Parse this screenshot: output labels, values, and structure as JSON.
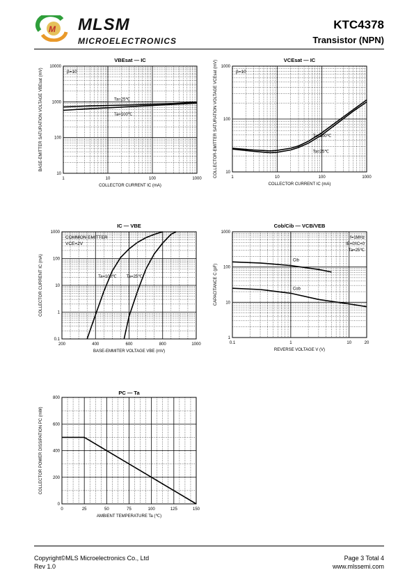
{
  "header": {
    "logo_name": "MLSM",
    "logo_sub": "MICROELECTRONICS",
    "part_number": "KTC4378",
    "part_type": "Transistor  (NPN)",
    "colors": {
      "logo_green": "#2e9e3a",
      "logo_orange": "#e9992a",
      "logo_red": "#c0302a"
    }
  },
  "footer": {
    "copyright": "Copyright©MLS Microelectronics Co., Ltd",
    "rev": "Rev 1.0",
    "page": "Page 3 Total 4",
    "website": "www.mlssemi.com"
  },
  "chart_data": [
    {
      "id": "vbesat",
      "type": "line",
      "title": "VBEsat — IC",
      "ylabel": "BASE-EMITTER SATURATION VOLTAGE VBEsat (mV)",
      "xlabel": "COLLECTOR CURRENT IC (mA)",
      "x_scale": "log",
      "y_scale": "log",
      "xlim": [
        1,
        1000
      ],
      "ylim": [
        10,
        10000
      ],
      "x_ticks": [
        "1",
        "10",
        "100",
        "1000"
      ],
      "y_ticks": [
        "10",
        "100",
        "1000",
        "10000"
      ],
      "annotations": [
        "β=10"
      ],
      "series": [
        {
          "name": "Ta=25℃",
          "x": [
            1,
            3,
            10,
            30,
            100,
            300,
            1000
          ],
          "y": [
            720,
            760,
            790,
            820,
            860,
            900,
            980
          ]
        },
        {
          "name": "Ta=100℃",
          "x": [
            1,
            3,
            10,
            30,
            100,
            300,
            1000
          ],
          "y": [
            580,
            630,
            680,
            730,
            790,
            850,
            920
          ]
        }
      ]
    },
    {
      "id": "vcesat",
      "type": "line",
      "title": "VCEsat — IC",
      "ylabel": "COLLECTOR-EMITTER SATURATION VOLTAGE VCEsat (mV)",
      "xlabel": "COLLECTOR CURRENT IC (mA)",
      "x_scale": "log",
      "y_scale": "log",
      "xlim": [
        1,
        1000
      ],
      "ylim": [
        10,
        1000
      ],
      "x_ticks": [
        "1",
        "10",
        "100",
        "1000"
      ],
      "y_ticks": [
        "10",
        "100",
        "1000"
      ],
      "annotations": [
        "β=10"
      ],
      "series": [
        {
          "name": "Ta=100℃",
          "x": [
            1,
            3,
            7,
            10,
            20,
            30,
            50,
            100,
            200,
            500,
            1000
          ],
          "y": [
            28,
            26,
            25,
            25.5,
            28,
            31,
            38,
            55,
            85,
            150,
            230
          ]
        },
        {
          "name": "Ta=25℃",
          "x": [
            1,
            3,
            7,
            10,
            20,
            30,
            50,
            100,
            200,
            500,
            1000
          ],
          "y": [
            27,
            24.5,
            23,
            23.5,
            26,
            29,
            35,
            50,
            78,
            140,
            210
          ]
        }
      ]
    },
    {
      "id": "ic_vbe",
      "type": "line",
      "title": "IC — VBE",
      "ylabel": "COLLECTOR CURRENT IC (mA)",
      "xlabel": "BASE-EMMITER VOLTAGE VBE (mV)",
      "x_scale": "linear",
      "y_scale": "log",
      "xlim": [
        200,
        1000
      ],
      "ylim": [
        0.1,
        1000
      ],
      "x_ticks": [
        "200",
        "400",
        "600",
        "800",
        "1000"
      ],
      "y_ticks": [
        "0.1",
        "1",
        "10",
        "100",
        "1000"
      ],
      "annotations": [
        "COMMON EMITTER",
        "VCE=2V"
      ],
      "series": [
        {
          "name": "Ta=100℃",
          "x": [
            350,
            400,
            450,
            500,
            550,
            600,
            650,
            700,
            750,
            800
          ],
          "y": [
            0.1,
            0.8,
            6,
            35,
            110,
            230,
            400,
            600,
            800,
            1000
          ]
        },
        {
          "name": "Ta=25℃",
          "x": [
            570,
            600,
            650,
            700,
            750,
            800,
            850,
            880
          ],
          "y": [
            0.1,
            0.7,
            6,
            40,
            150,
            380,
            800,
            1000
          ]
        }
      ]
    },
    {
      "id": "cap",
      "type": "line",
      "title": "Cob/Cib — VCB/VEB",
      "ylabel": "CAPACITANCE C (pF)",
      "xlabel": "REVERSE VOLTAGE V (V)",
      "x_scale": "log",
      "y_scale": "log",
      "xlim": [
        0.1,
        20
      ],
      "ylim": [
        1,
        1000
      ],
      "x_ticks": [
        "0.1",
        "1",
        "10",
        "20"
      ],
      "y_ticks": [
        "1",
        "10",
        "100",
        "1000"
      ],
      "annotations": [
        "f=1MHz",
        "IE=0/IC=0",
        "Ta=25℃"
      ],
      "series": [
        {
          "name": "Cib",
          "x": [
            0.1,
            0.3,
            1,
            3,
            5
          ],
          "y": [
            140,
            130,
            110,
            85,
            72
          ]
        },
        {
          "name": "Cob",
          "x": [
            0.1,
            0.3,
            1,
            3,
            10,
            20
          ],
          "y": [
            25,
            23,
            18,
            12,
            9,
            7.5
          ]
        }
      ]
    },
    {
      "id": "pc_ta",
      "type": "line",
      "title": "PC — Ta",
      "ylabel": "COLLECTOR POWER DISSIPATION PC (mW)",
      "xlabel": "AMBIENT TEMPERATURE Ta (℃)",
      "x_scale": "linear",
      "y_scale": "linear",
      "xlim": [
        0,
        150
      ],
      "ylim": [
        0,
        800
      ],
      "x_ticks": [
        "0",
        "25",
        "50",
        "75",
        "100",
        "125",
        "150"
      ],
      "y_ticks": [
        "0",
        "200",
        "400",
        "600",
        "800"
      ],
      "series": [
        {
          "name": "",
          "x": [
            0,
            25,
            150
          ],
          "y": [
            500,
            500,
            0
          ]
        }
      ]
    }
  ]
}
